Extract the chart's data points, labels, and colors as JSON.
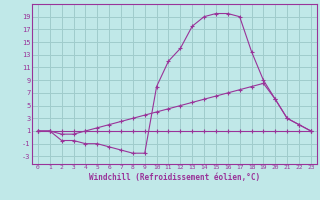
{
  "xlabel": "Windchill (Refroidissement éolien,°C)",
  "bg_color": "#c0e8e8",
  "grid_color": "#a0cccc",
  "line_color": "#993399",
  "x_ticks": [
    0,
    1,
    2,
    3,
    4,
    5,
    6,
    7,
    8,
    9,
    10,
    11,
    12,
    13,
    14,
    15,
    16,
    17,
    18,
    19,
    20,
    21,
    22,
    23
  ],
  "y_ticks": [
    -3,
    -1,
    1,
    3,
    5,
    7,
    9,
    11,
    13,
    15,
    17,
    19
  ],
  "xlim": [
    -0.5,
    23.5
  ],
  "ylim": [
    -4.2,
    21.0
  ],
  "line1_x": [
    0,
    1,
    2,
    3,
    4,
    5,
    6,
    7,
    8,
    9,
    10,
    11,
    12,
    13,
    14,
    15,
    16,
    17,
    18,
    19,
    20,
    21,
    22,
    23
  ],
  "line1_y": [
    1,
    1,
    -0.5,
    -0.5,
    -1,
    -1,
    -1.5,
    -2,
    -2.5,
    -2.5,
    8,
    12,
    14,
    17.5,
    19,
    19.5,
    19.5,
    19,
    13.5,
    9,
    6,
    3,
    2,
    1
  ],
  "line2_x": [
    0,
    1,
    2,
    3,
    4,
    5,
    6,
    7,
    8,
    9,
    10,
    11,
    12,
    13,
    14,
    15,
    16,
    17,
    18,
    19,
    20,
    21,
    22,
    23
  ],
  "line2_y": [
    1,
    1,
    0.5,
    0.5,
    1,
    1.5,
    2,
    2.5,
    3,
    3.5,
    4,
    4.5,
    5,
    5.5,
    6,
    6.5,
    7,
    7.5,
    8,
    8.5,
    6,
    3,
    2,
    1
  ],
  "line3_x": [
    0,
    1,
    2,
    3,
    4,
    5,
    6,
    7,
    8,
    9,
    10,
    11,
    12,
    13,
    14,
    15,
    16,
    17,
    18,
    19,
    20,
    21,
    22,
    23
  ],
  "line3_y": [
    1,
    1,
    1,
    1,
    1,
    1,
    1,
    1,
    1,
    1,
    1,
    1,
    1,
    1,
    1,
    1,
    1,
    1,
    1,
    1,
    1,
    1,
    1,
    1
  ]
}
